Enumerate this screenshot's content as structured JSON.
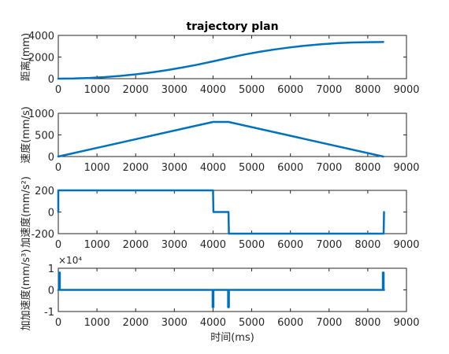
{
  "chart_data": [
    {
      "type": "line",
      "title": "trajectory plan",
      "ylabel": "距离(mm)",
      "xlabel": "",
      "xlim": [
        0,
        9000
      ],
      "ylim": [
        0,
        4000
      ],
      "xticks": [
        "0",
        "1000",
        "2000",
        "3000",
        "4000",
        "5000",
        "6000",
        "7000",
        "8000",
        "9000"
      ],
      "yticks": [
        "0",
        "2000",
        "4000"
      ],
      "ytick_values": [
        0,
        2000,
        4000
      ],
      "exponent": "",
      "grid": false,
      "color": "#0072BD",
      "series": [
        {
          "x": [
            0,
            400,
            800,
            1200,
            1600,
            2000,
            2400,
            2800,
            3200,
            3600,
            4000,
            4400,
            4800,
            5200,
            5600,
            6000,
            6400,
            6800,
            7200,
            7600,
            8000,
            8400
          ],
          "y": [
            0,
            16,
            64,
            144,
            256,
            400,
            576,
            784,
            1024,
            1296,
            1600,
            1920,
            2224,
            2480,
            2704,
            2896,
            3056,
            3184,
            3280,
            3344,
            3376,
            3390
          ]
        }
      ]
    },
    {
      "type": "line",
      "title": "",
      "ylabel": "速度(mm/s)",
      "xlabel": "",
      "xlim": [
        0,
        9000
      ],
      "ylim": [
        0,
        1000
      ],
      "xticks": [
        "0",
        "1000",
        "2000",
        "3000",
        "4000",
        "5000",
        "6000",
        "7000",
        "8000",
        "9000"
      ],
      "yticks": [
        "0",
        "500",
        "1000"
      ],
      "ytick_values": [
        0,
        500,
        1000
      ],
      "exponent": "",
      "grid": false,
      "color": "#0072BD",
      "series": [
        {
          "x": [
            0,
            4000,
            4400,
            8400
          ],
          "y": [
            0,
            800,
            800,
            0
          ]
        }
      ]
    },
    {
      "type": "line",
      "title": "",
      "ylabel": "加速度(mm/s²)",
      "xlabel": "",
      "xlim": [
        0,
        9000
      ],
      "ylim": [
        -200,
        200
      ],
      "xticks": [
        "0",
        "1000",
        "2000",
        "3000",
        "4000",
        "5000",
        "6000",
        "7000",
        "8000",
        "9000"
      ],
      "yticks": [
        "-200",
        "0",
        "200"
      ],
      "ytick_values": [
        -200,
        0,
        200
      ],
      "exponent": "",
      "grid": false,
      "color": "#0072BD",
      "series": [
        {
          "x": [
            0,
            0,
            10,
            4000,
            4010,
            4400,
            4410,
            8400,
            8410,
            8420
          ],
          "y": [
            0,
            200,
            200,
            200,
            0,
            0,
            -200,
            -200,
            -200,
            0
          ]
        }
      ]
    },
    {
      "type": "line",
      "title": "",
      "ylabel": "加加速度(mm/s³)",
      "xlabel": "时间(ms)",
      "xlim": [
        0,
        9000
      ],
      "ylim": [
        -10000,
        10000
      ],
      "xticks": [
        "0",
        "1000",
        "2000",
        "3000",
        "4000",
        "5000",
        "6000",
        "7000",
        "8000",
        "9000"
      ],
      "yticks": [
        "-1",
        "0",
        "1"
      ],
      "ytick_values": [
        -10000,
        0,
        10000
      ],
      "exponent": "×10⁴",
      "grid": false,
      "color": "#0072BD",
      "series": [
        {
          "x": [
            0,
            20,
            20,
            40,
            40,
            3990,
            3990,
            4010,
            4010,
            4390,
            4390,
            4410,
            4410,
            8390,
            8390,
            8410,
            8410,
            8420
          ],
          "y": [
            0,
            0,
            8000,
            8000,
            0,
            0,
            -8000,
            -8000,
            0,
            0,
            -8000,
            -8000,
            0,
            0,
            8000,
            8000,
            0,
            0
          ]
        }
      ]
    }
  ]
}
